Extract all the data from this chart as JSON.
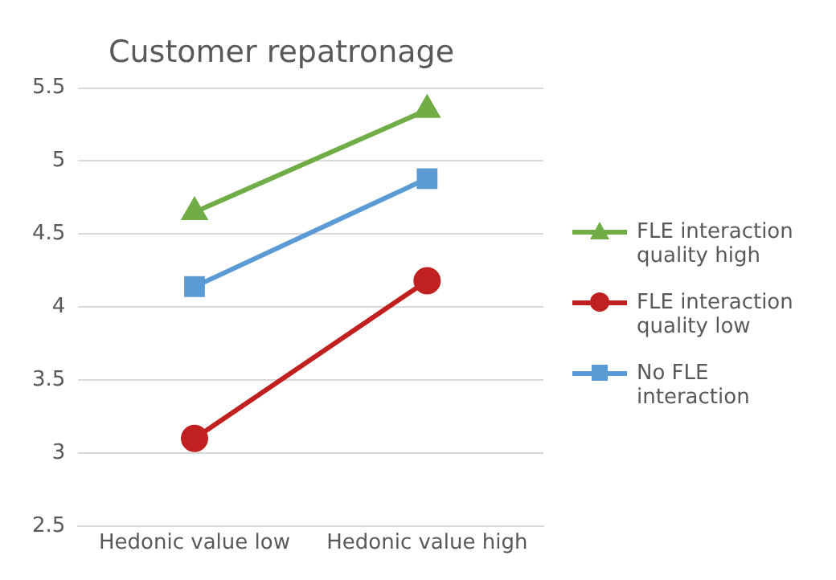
{
  "chart_data": {
    "type": "line",
    "title": "Customer repatronage",
    "categories": [
      "Hedonic value low",
      "Hedonic value high"
    ],
    "series": [
      {
        "name": "FLE interaction quality high",
        "color": "#70ad47",
        "values": [
          4.65,
          5.35
        ],
        "marker": "triangle"
      },
      {
        "name": "FLE interaction quality low",
        "color": "#c0201f",
        "values": [
          3.1,
          4.18
        ],
        "marker": "circle"
      },
      {
        "name": "No FLE interaction",
        "color": "#5b9bd5",
        "values": [
          4.14,
          4.88
        ],
        "marker": "square"
      }
    ],
    "ylim": [
      2.5,
      5.5
    ],
    "yticks": [
      2.5,
      3,
      3.5,
      4,
      4.5,
      5,
      5.5
    ],
    "grid": "y",
    "legend": "right"
  }
}
